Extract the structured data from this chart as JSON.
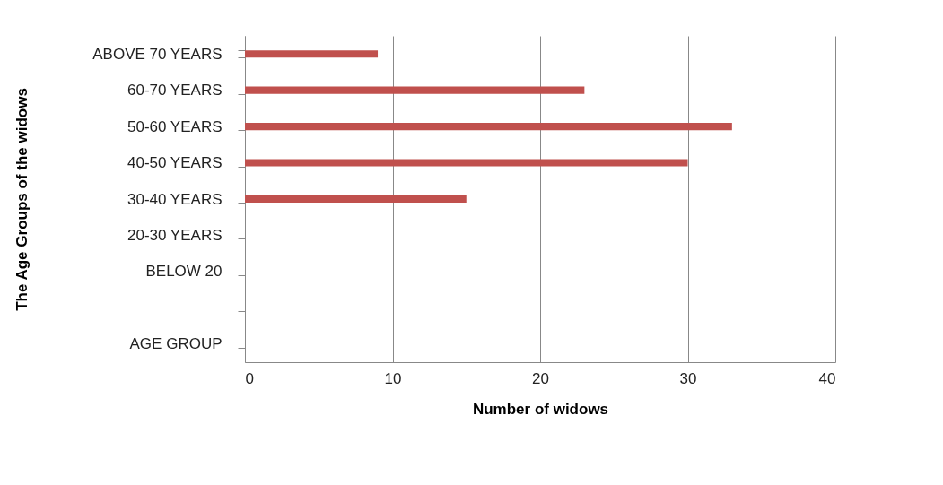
{
  "chart_data": {
    "type": "bar",
    "orientation": "horizontal",
    "xlabel": "Number of widows",
    "ylabel": "The Age Groups of the widows",
    "categories": [
      "ABOVE 70 YEARS",
      "60-70 YEARS",
      "50-60 YEARS",
      "40-50 YEARS",
      "30-40 YEARS",
      "20-30 YEARS",
      "BELOW 20",
      null,
      "AGE GROUP"
    ],
    "values": [
      9,
      23,
      33,
      30,
      15,
      null,
      null,
      null,
      null
    ],
    "color": "#c0504d",
    "xlim": [
      0,
      40
    ],
    "xticks": [
      0,
      10,
      20,
      30,
      40
    ],
    "grid": "x"
  }
}
